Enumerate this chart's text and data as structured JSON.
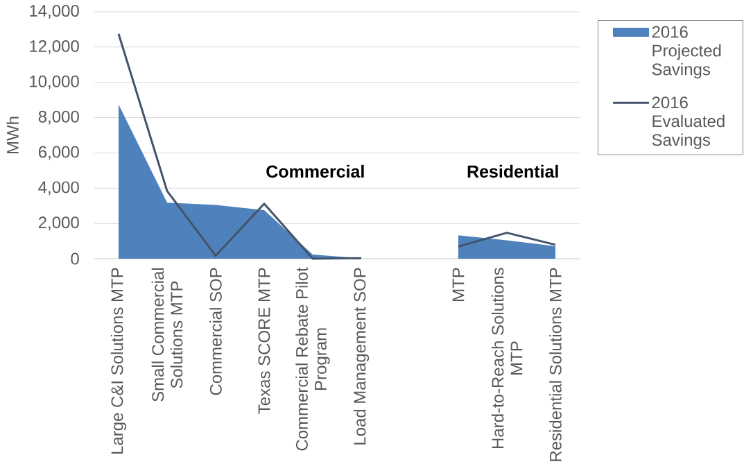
{
  "chart_data": {
    "type": "area",
    "ylabel": "MWh",
    "categories": [
      "Large C&I Solutions MTP",
      "Small Commercial Solutions MTP",
      "Commercial SOP",
      "Texas SCORE MTP",
      "Commercial Rebate Pilot Program",
      "Load Management SOP",
      null,
      "MTP",
      "Hard-to-Reach Solutions MTP",
      "Residential Solutions MTP"
    ],
    "series": [
      {
        "name": "2016 Projected Savings",
        "color": "#4f81bd",
        "values": [
          8750,
          3180,
          3050,
          2750,
          240,
          30,
          null,
          1330,
          1040,
          710
        ]
      },
      {
        "name": "2016 Evaluated Savings",
        "type": "line",
        "color": "#44546a",
        "values": [
          12750,
          3840,
          170,
          3120,
          0,
          30,
          null,
          690,
          1470,
          790
        ]
      }
    ],
    "ylim": [
      0,
      14000
    ],
    "yticks": [
      0,
      {
        "value": 2000,
        "label": "2,000"
      },
      {
        "value": 4000,
        "label": "4,000"
      },
      {
        "value": 6000,
        "label": "6,000"
      },
      {
        "value": 8000,
        "label": "8,000"
      },
      {
        "value": 10000,
        "label": "10,000"
      },
      {
        "value": 12000,
        "label": "12,000"
      },
      {
        "value": 14000,
        "label": "14,000"
      }
    ],
    "grid": "y",
    "legend": "top right",
    "annotations": [
      "Commercial",
      "Residential"
    ]
  }
}
